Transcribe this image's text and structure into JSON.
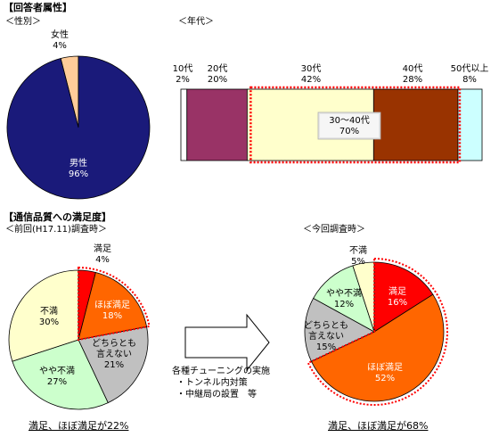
{
  "sections": {
    "respondents": "【回答者属性】",
    "gender": "＜性別＞",
    "age": "＜年代＞",
    "satisfaction": "【通信品質への満足度】",
    "previous": "＜前回(H17.11)調査時＞",
    "current": "＜今回調査時＞"
  },
  "middle_text": {
    "line1": "各種チューニングの実施",
    "line2": "・トンネル内対策",
    "line3": "・中継局の設置　等"
  },
  "summaries": {
    "previous": "満足、ほぼ満足が22%",
    "current": "満足、ほぼ満足が68%"
  },
  "colors": {
    "male": "#1a1a7a",
    "female": "#ffcc99",
    "teens": "#ffffff",
    "twenties": "#993366",
    "thirties": "#ffffcc",
    "forties": "#993300",
    "fifties": "#ccffff",
    "satisfied": "#ff0000",
    "mostly_satisfied": "#ff6600",
    "neutral": "#c0c0c0",
    "somewhat_dissatisfied": "#ccffcc",
    "dissatisfied": "#ffffcc",
    "highlight": "#ff0000"
  },
  "chart_data": [
    {
      "type": "pie",
      "name": "gender",
      "categories": [
        "男性",
        "女性"
      ],
      "values": [
        96,
        4
      ],
      "labels": [
        "96%",
        "4%"
      ]
    },
    {
      "type": "bar",
      "name": "age",
      "orientation": "horizontal-stacked",
      "categories": [
        "10代",
        "20代",
        "30代",
        "40代",
        "50代以上"
      ],
      "values": [
        2,
        20,
        42,
        28,
        8
      ],
      "labels": [
        "2%",
        "20%",
        "42%",
        "28%",
        "8%"
      ],
      "annotation": {
        "line1": "30～40代",
        "line2": "70%",
        "value": 70
      }
    },
    {
      "type": "pie",
      "name": "previous",
      "categories": [
        "満足",
        "ほぼ満足",
        "どちらとも言えない",
        "やや不満",
        "不満"
      ],
      "values": [
        4,
        18,
        21,
        27,
        30
      ],
      "labels": [
        "4%",
        "18%",
        "21%",
        "27%",
        "30%"
      ]
    },
    {
      "type": "pie",
      "name": "current",
      "categories": [
        "満足",
        "ほぼ満足",
        "どちらとも言えない",
        "やや不満",
        "不満"
      ],
      "values": [
        16,
        52,
        15,
        12,
        5
      ],
      "labels": [
        "16%",
        "52%",
        "15%",
        "12%",
        "5%"
      ]
    }
  ],
  "label_parts": {
    "neutral_line1": "どちらとも",
    "neutral_line2": "言えない",
    "somewhat_line1": "やや不満"
  }
}
